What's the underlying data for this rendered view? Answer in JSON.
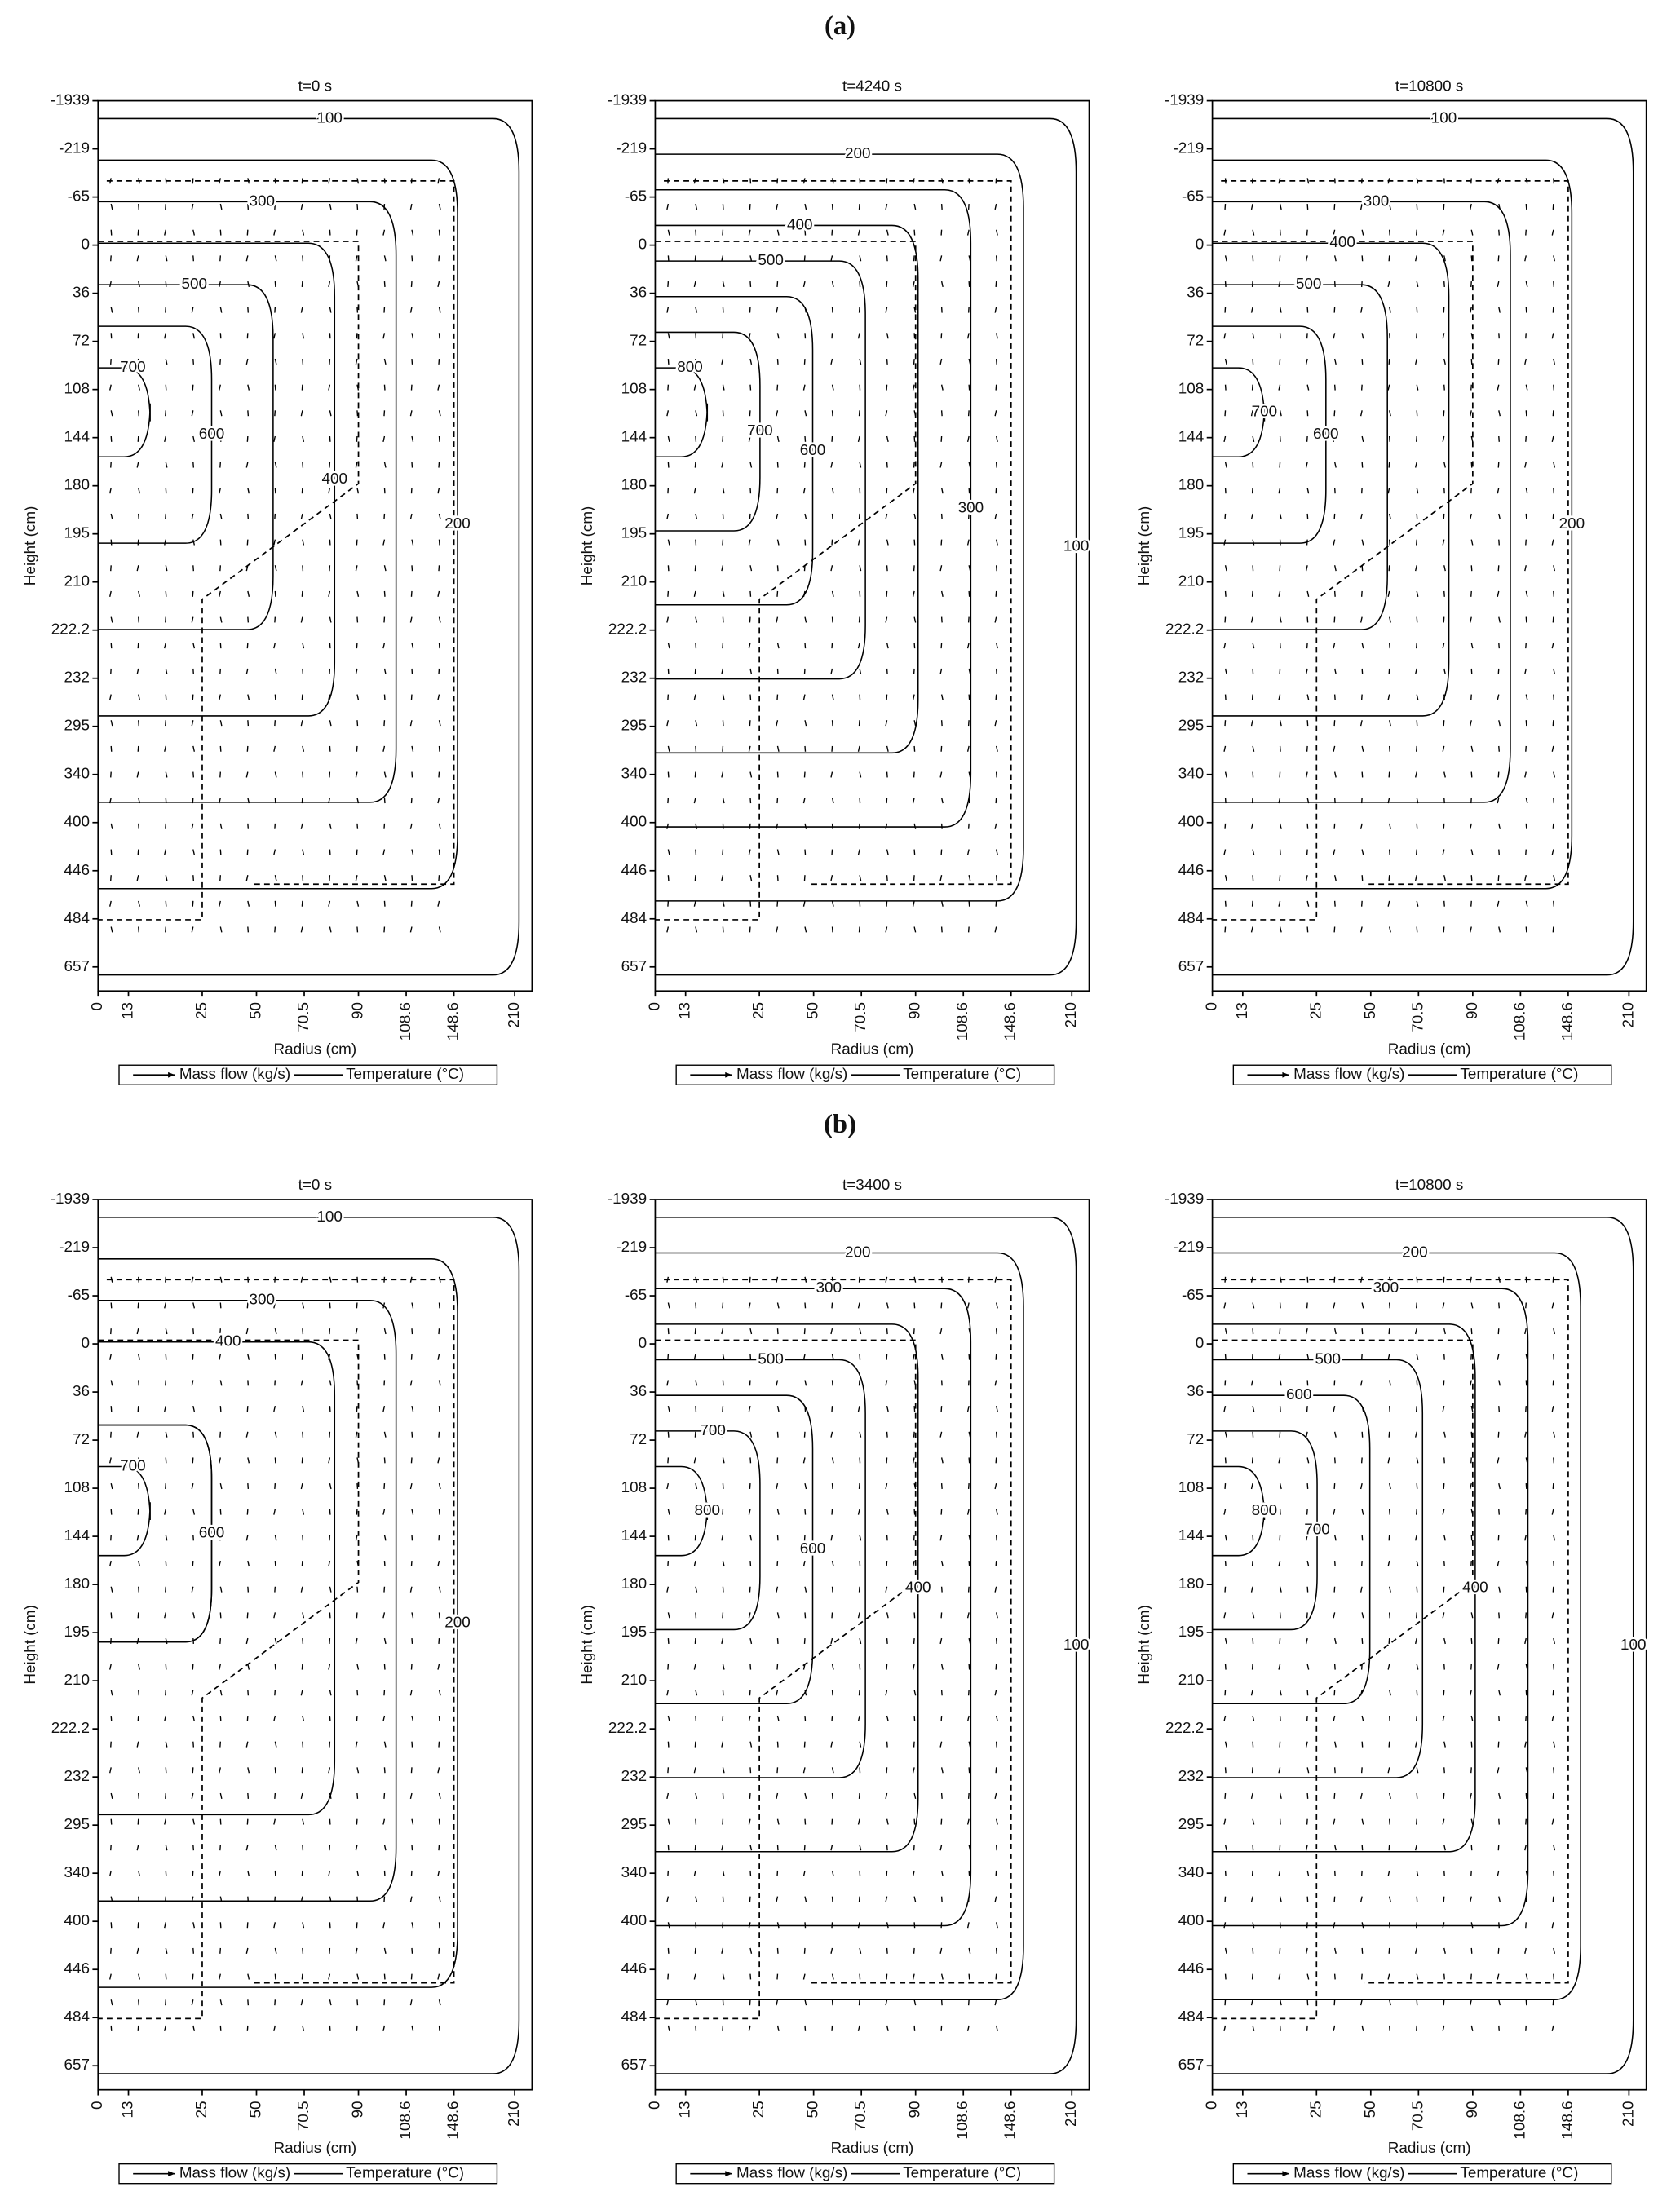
{
  "panel_labels": [
    "(a)",
    "(b)"
  ],
  "chart_data": [
    {
      "type": "contour",
      "title": "t=0 s",
      "x_label": "Radius (cm)",
      "y_label": "Height (cm)",
      "x_categories": [
        0,
        13,
        25,
        50,
        70.5,
        90,
        108.6,
        148.6,
        210
      ],
      "y_categories": [
        -1939,
        -219,
        -65,
        0,
        36,
        72,
        108,
        144,
        180,
        195,
        210,
        222.2,
        232,
        295,
        340,
        400,
        446,
        484,
        657
      ],
      "contour_levels": [
        300,
        400,
        700,
        600,
        500,
        200,
        100
      ],
      "legend": [
        "Mass flow (kg/s)",
        "Temperature (°C)"
      ]
    },
    {
      "type": "contour",
      "title": "t=4240 s",
      "x_label": "Radius (cm)",
      "y_label": "Height (cm)",
      "x_categories": [
        0,
        13,
        25,
        50,
        70.5,
        90,
        108.6,
        148.6,
        210
      ],
      "y_categories": [
        -1939,
        -219,
        -65,
        0,
        36,
        72,
        108,
        144,
        180,
        195,
        210,
        222.2,
        232,
        295,
        340,
        400,
        446,
        484,
        657
      ],
      "contour_levels": [
        200,
        300,
        500,
        600,
        800,
        700,
        400,
        100
      ],
      "legend": [
        "Mass flow (kg/s)",
        "Temperature (°C)"
      ]
    },
    {
      "type": "contour",
      "title": "t=10800 s",
      "x_label": "Radius (cm)",
      "y_label": "Height (cm)",
      "x_categories": [
        0,
        13,
        25,
        50,
        70.5,
        90,
        108.6,
        148.6,
        210
      ],
      "y_categories": [
        -1939,
        -219,
        -65,
        0,
        36,
        72,
        108,
        144,
        180,
        195,
        210,
        222.2,
        232,
        295,
        340,
        400,
        446,
        484,
        657
      ],
      "contour_levels": [
        300,
        700,
        500,
        600,
        400,
        200,
        100
      ],
      "legend": [
        "Mass flow (kg/s)",
        "Temperature (°C)"
      ]
    },
    {
      "type": "contour",
      "title": "t=0 s",
      "x_label": "Radius (cm)",
      "y_label": "Height (cm)",
      "x_categories": [
        0,
        13,
        25,
        50,
        70.5,
        90,
        108.6,
        148.6,
        210
      ],
      "y_categories": [
        -1939,
        -219,
        -65,
        0,
        36,
        72,
        108,
        144,
        180,
        195,
        210,
        222.2,
        232,
        295,
        340,
        400,
        446,
        484,
        657
      ],
      "contour_levels": [
        400,
        600,
        700,
        600,
        300,
        200,
        100
      ],
      "legend": [
        "Mass flow (kg/s)",
        "Temperature (°C)"
      ]
    },
    {
      "type": "contour",
      "title": "t=3400 s",
      "x_label": "Radius (cm)",
      "y_label": "Height (cm)",
      "x_categories": [
        0,
        13,
        25,
        50,
        70.5,
        90,
        108.6,
        148.6,
        210
      ],
      "y_categories": [
        -1939,
        -219,
        -65,
        0,
        36,
        72,
        108,
        144,
        180,
        195,
        210,
        222.2,
        232,
        295,
        340,
        400,
        446,
        484,
        657
      ],
      "contour_levels": [
        200,
        800,
        700,
        600,
        500,
        400,
        300,
        100
      ],
      "legend": [
        "Mass flow (kg/s)",
        "Temperature (°C)"
      ]
    },
    {
      "type": "contour",
      "title": "t=10800 s",
      "x_label": "Radius (cm)",
      "y_label": "Height (cm)",
      "x_categories": [
        0,
        13,
        25,
        50,
        70.5,
        90,
        108.6,
        148.6,
        210
      ],
      "y_categories": [
        -1939,
        -219,
        -65,
        0,
        36,
        72,
        108,
        144,
        180,
        195,
        210,
        222.2,
        232,
        295,
        340,
        400,
        446,
        484,
        657
      ],
      "contour_levels": [
        300,
        800,
        600,
        700,
        500,
        400,
        200,
        100
      ],
      "legend": [
        "Mass flow (kg/s)",
        "Temperature (°C)"
      ]
    }
  ]
}
